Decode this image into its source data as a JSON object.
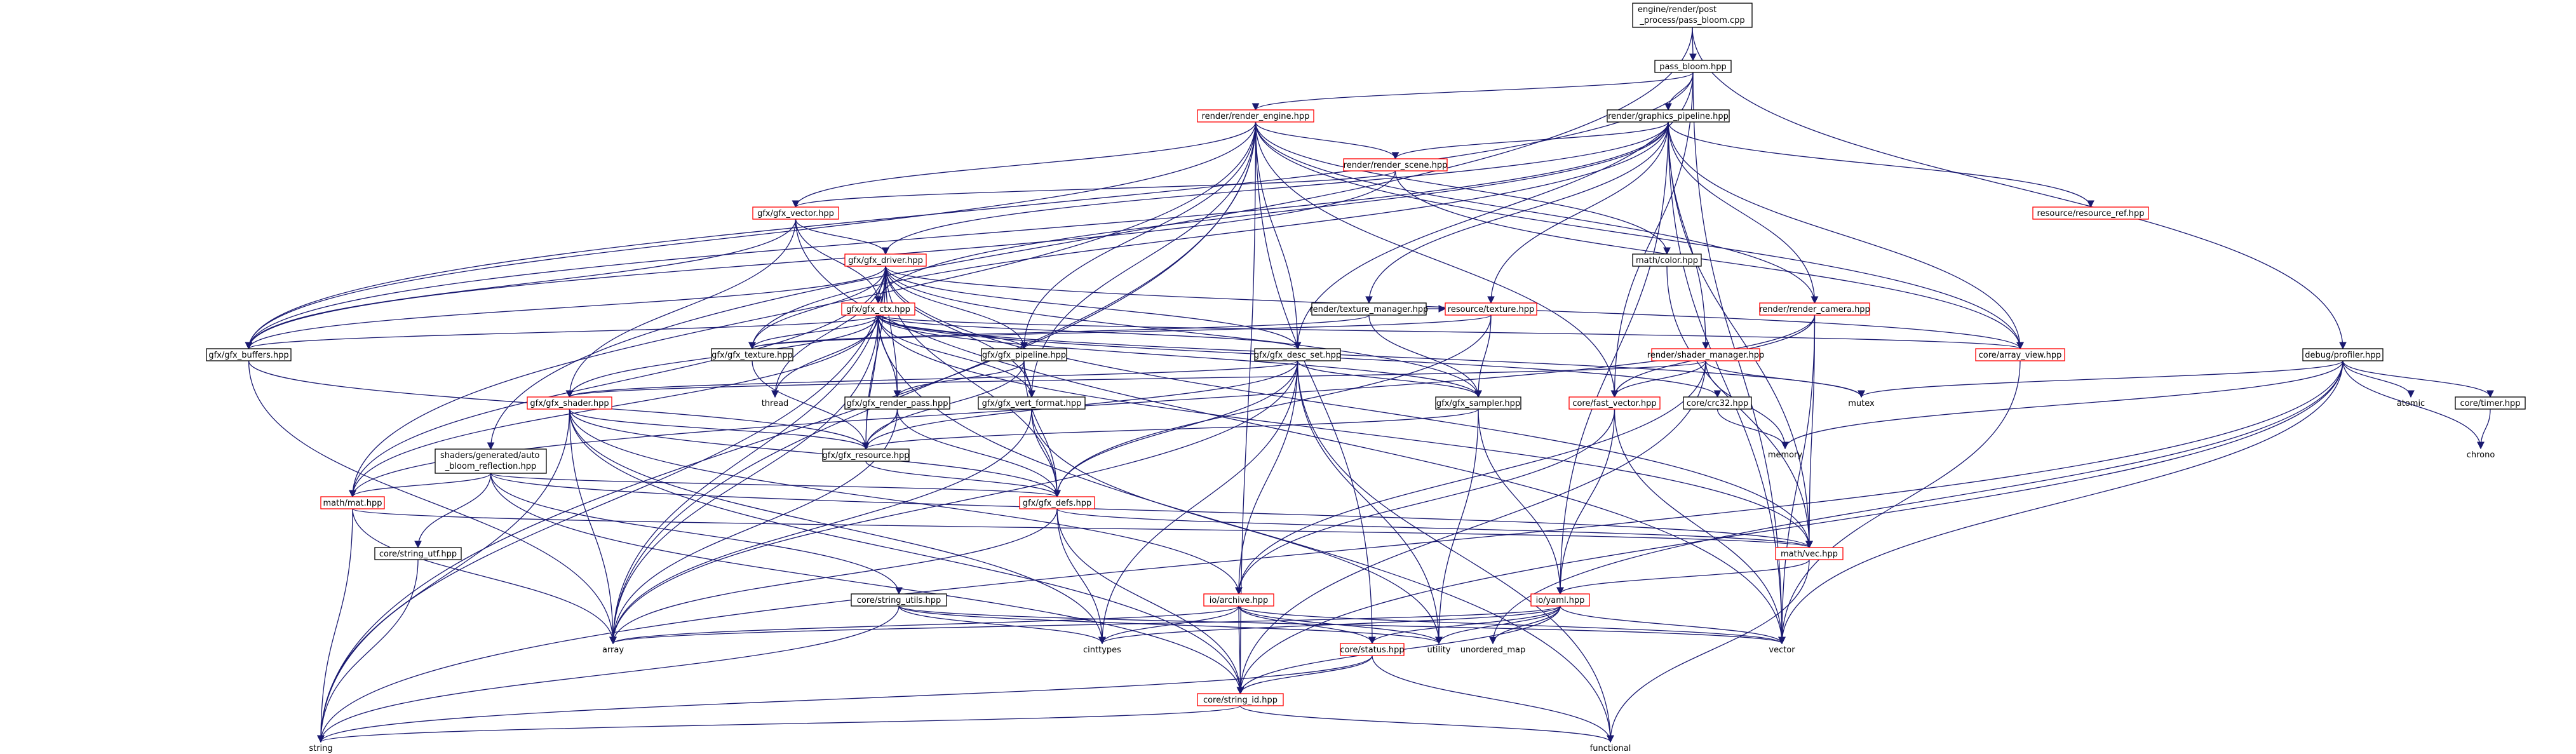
{
  "colors": {
    "edge": "#191970",
    "root_fill": "#bfbfbf",
    "node_border": "#000000",
    "incomplete_border": "#ff0000",
    "background": "#ffffff"
  },
  "nodes": {
    "root": {
      "label": "engine/render/post\n_process/pass_bloom.cpp",
      "style": "root"
    },
    "pass_bloom_hpp": {
      "label": "pass_bloom.hpp",
      "style": "normal"
    },
    "render_engine": {
      "label": "render/render_engine.hpp",
      "style": "red"
    },
    "graphics_pipeline": {
      "label": "render/graphics_pipeline.hpp",
      "style": "normal"
    },
    "debug_profiler": {
      "label": "debug/profiler.hpp",
      "style": "normal"
    },
    "render_scene": {
      "label": "render/render_scene.hpp",
      "style": "red"
    },
    "resource_ref": {
      "label": "resource/resource_ref.hpp",
      "style": "red"
    },
    "gfx_vector": {
      "label": "gfx/gfx_vector.hpp",
      "style": "red"
    },
    "math_color": {
      "label": "math/color.hpp",
      "style": "normal"
    },
    "gfx_driver": {
      "label": "gfx/gfx_driver.hpp",
      "style": "red"
    },
    "texture_manager": {
      "label": "render/texture_manager.hpp",
      "style": "normal"
    },
    "resource_texture": {
      "label": "resource/texture.hpp",
      "style": "red"
    },
    "render_camera": {
      "label": "render/render_camera.hpp",
      "style": "red"
    },
    "gfx_ctx": {
      "label": "gfx/gfx_ctx.hpp",
      "style": "red"
    },
    "core_array_view": {
      "label": "core/array_view.hpp",
      "style": "red"
    },
    "gfx_buffers": {
      "label": "gfx/gfx_buffers.hpp",
      "style": "normal"
    },
    "gfx_texture": {
      "label": "gfx/gfx_texture.hpp",
      "style": "normal"
    },
    "gfx_pipeline": {
      "label": "gfx/gfx_pipeline.hpp",
      "style": "normal"
    },
    "gfx_desc_set": {
      "label": "gfx/gfx_desc_set.hpp",
      "style": "normal"
    },
    "shader_manager": {
      "label": "render/shader_manager.hpp",
      "style": "red"
    },
    "gfx_shader": {
      "label": "gfx/gfx_shader.hpp",
      "style": "red"
    },
    "gfx_render_pass": {
      "label": "gfx/gfx_render_pass.hpp",
      "style": "normal"
    },
    "gfx_vert_format": {
      "label": "gfx/gfx_vert_format.hpp",
      "style": "normal"
    },
    "gfx_sampler": {
      "label": "gfx/gfx_sampler.hpp",
      "style": "normal"
    },
    "core_fast_vector": {
      "label": "core/fast_vector.hpp",
      "style": "red"
    },
    "core_crc32": {
      "label": "core/crc32.hpp",
      "style": "normal"
    },
    "core_timer": {
      "label": "core/timer.hpp",
      "style": "normal"
    },
    "gfx_resource": {
      "label": "gfx/gfx_resource.hpp",
      "style": "normal"
    },
    "shaders_auto": {
      "label": "shaders/generated/auto\n_bloom_reflection.hpp",
      "style": "normal"
    },
    "gfx_defs": {
      "label": "gfx/gfx_defs.hpp",
      "style": "red"
    },
    "math_mat": {
      "label": "math/mat.hpp",
      "style": "red"
    },
    "math_vec": {
      "label": "math/vec.hpp",
      "style": "red"
    },
    "core_string_utf": {
      "label": "core/string_utf.hpp",
      "style": "normal"
    },
    "core_string_utils": {
      "label": "core/string_utils.hpp",
      "style": "normal"
    },
    "io_archive": {
      "label": "io/archive.hpp",
      "style": "red"
    },
    "io_yaml": {
      "label": "io/yaml.hpp",
      "style": "red"
    },
    "core_status": {
      "label": "core/status.hpp",
      "style": "red"
    },
    "core_string_id": {
      "label": "core/string_id.hpp",
      "style": "red"
    },
    "thread": {
      "label": "thread",
      "style": "leaf"
    },
    "mutex": {
      "label": "mutex",
      "style": "leaf"
    },
    "atomic": {
      "label": "atomic",
      "style": "leaf"
    },
    "chrono": {
      "label": "chrono",
      "style": "leaf"
    },
    "memory": {
      "label": "memory",
      "style": "leaf"
    },
    "array": {
      "label": "array",
      "style": "leaf"
    },
    "cinttypes": {
      "label": "cinttypes",
      "style": "leaf"
    },
    "utility": {
      "label": "utility",
      "style": "leaf"
    },
    "unordered_map": {
      "label": "unordered_map",
      "style": "leaf"
    },
    "vector": {
      "label": "vector",
      "style": "leaf"
    },
    "string": {
      "label": "string",
      "style": "leaf"
    },
    "functional": {
      "label": "functional",
      "style": "leaf"
    }
  },
  "edges": [
    [
      "root",
      "pass_bloom_hpp"
    ],
    [
      "root",
      "debug_profiler"
    ],
    [
      "root",
      "shaders_auto"
    ],
    [
      "pass_bloom_hpp",
      "render_engine"
    ],
    [
      "pass_bloom_hpp",
      "graphics_pipeline"
    ],
    [
      "pass_bloom_hpp",
      "gfx_buffers"
    ],
    [
      "pass_bloom_hpp",
      "gfx_desc_set"
    ],
    [
      "pass_bloom_hpp",
      "core_fast_vector"
    ],
    [
      "pass_bloom_hpp",
      "vector"
    ],
    [
      "render_engine",
      "render_scene"
    ],
    [
      "render_engine",
      "gfx_vector"
    ],
    [
      "render_engine",
      "math_color"
    ],
    [
      "render_engine",
      "render_camera"
    ],
    [
      "render_engine",
      "core_array_view"
    ],
    [
      "render_engine",
      "gfx_pipeline"
    ],
    [
      "render_engine",
      "gfx_desc_set"
    ],
    [
      "render_engine",
      "gfx_vert_format"
    ],
    [
      "render_engine",
      "gfx_buffers"
    ],
    [
      "render_engine",
      "core_status"
    ],
    [
      "render_engine",
      "core_string_id"
    ],
    [
      "render_engine",
      "array"
    ],
    [
      "render_engine",
      "string"
    ],
    [
      "render_engine",
      "math_mat"
    ],
    [
      "render_engine",
      "core_fast_vector"
    ],
    [
      "graphics_pipeline",
      "render_scene"
    ],
    [
      "graphics_pipeline",
      "gfx_driver"
    ],
    [
      "graphics_pipeline",
      "gfx_ctx"
    ],
    [
      "graphics_pipeline",
      "resource_ref"
    ],
    [
      "graphics_pipeline",
      "texture_manager"
    ],
    [
      "graphics_pipeline",
      "resource_texture"
    ],
    [
      "graphics_pipeline",
      "render_camera"
    ],
    [
      "graphics_pipeline",
      "shader_manager"
    ],
    [
      "graphics_pipeline",
      "core_array_view"
    ],
    [
      "graphics_pipeline",
      "gfx_buffers"
    ],
    [
      "graphics_pipeline",
      "gfx_texture"
    ],
    [
      "graphics_pipeline",
      "math_vec"
    ],
    [
      "graphics_pipeline",
      "vector"
    ],
    [
      "graphics_pipeline",
      "io_yaml"
    ],
    [
      "render_scene",
      "gfx_vector"
    ],
    [
      "render_scene",
      "gfx_buffers"
    ],
    [
      "render_scene",
      "core_array_view"
    ],
    [
      "gfx_vector",
      "gfx_driver"
    ],
    [
      "gfx_vector",
      "gfx_buffers"
    ],
    [
      "gfx_vector",
      "gfx_shader"
    ],
    [
      "gfx_vector",
      "gfx_ctx"
    ],
    [
      "gfx_vector",
      "vector"
    ],
    [
      "math_color",
      "math_vec"
    ],
    [
      "gfx_driver",
      "gfx_ctx"
    ],
    [
      "gfx_driver",
      "gfx_buffers"
    ],
    [
      "gfx_driver",
      "gfx_texture"
    ],
    [
      "gfx_driver",
      "gfx_pipeline"
    ],
    [
      "gfx_driver",
      "gfx_desc_set"
    ],
    [
      "gfx_driver",
      "gfx_render_pass"
    ],
    [
      "gfx_driver",
      "gfx_vert_format"
    ],
    [
      "gfx_driver",
      "gfx_sampler"
    ],
    [
      "gfx_driver",
      "gfx_resource"
    ],
    [
      "gfx_driver",
      "gfx_defs"
    ],
    [
      "gfx_driver",
      "math_mat"
    ],
    [
      "gfx_driver",
      "math_vec"
    ],
    [
      "gfx_driver",
      "array"
    ],
    [
      "gfx_driver",
      "string"
    ],
    [
      "gfx_driver",
      "thread"
    ],
    [
      "gfx_driver",
      "core_array_view"
    ],
    [
      "texture_manager",
      "gfx_texture"
    ],
    [
      "texture_manager",
      "gfx_sampler"
    ],
    [
      "texture_manager",
      "resource_texture"
    ],
    [
      "resource_texture",
      "gfx_texture"
    ],
    [
      "resource_texture",
      "gfx_sampler"
    ],
    [
      "resource_texture",
      "gfx_defs"
    ],
    [
      "render_camera",
      "math_mat"
    ],
    [
      "render_camera",
      "math_vec"
    ],
    [
      "render_camera",
      "core_fast_vector"
    ],
    [
      "render_camera",
      "vector"
    ],
    [
      "gfx_ctx",
      "gfx_buffers"
    ],
    [
      "gfx_ctx",
      "gfx_texture"
    ],
    [
      "gfx_ctx",
      "gfx_pipeline"
    ],
    [
      "gfx_ctx",
      "gfx_desc_set"
    ],
    [
      "gfx_ctx",
      "gfx_shader"
    ],
    [
      "gfx_ctx",
      "gfx_render_pass"
    ],
    [
      "gfx_ctx",
      "gfx_vert_format"
    ],
    [
      "gfx_ctx",
      "gfx_sampler"
    ],
    [
      "gfx_ctx",
      "gfx_resource"
    ],
    [
      "gfx_ctx",
      "core_crc32"
    ],
    [
      "gfx_ctx",
      "math_mat"
    ],
    [
      "gfx_ctx",
      "math_vec"
    ],
    [
      "gfx_ctx",
      "array"
    ],
    [
      "gfx_ctx",
      "thread"
    ],
    [
      "gfx_ctx",
      "mutex"
    ],
    [
      "gfx_ctx",
      "functional"
    ],
    [
      "gfx_ctx",
      "core_array_view"
    ],
    [
      "core_array_view",
      "vector"
    ],
    [
      "gfx_buffers",
      "gfx_resource"
    ],
    [
      "gfx_buffers",
      "array"
    ],
    [
      "gfx_texture",
      "gfx_resource"
    ],
    [
      "gfx_pipeline",
      "gfx_resource"
    ],
    [
      "gfx_pipeline",
      "gfx_defs"
    ],
    [
      "gfx_pipeline",
      "gfx_vert_format"
    ],
    [
      "gfx_pipeline",
      "gfx_render_pass"
    ],
    [
      "gfx_desc_set",
      "gfx_resource"
    ],
    [
      "gfx_desc_set",
      "gfx_sampler"
    ],
    [
      "gfx_desc_set",
      "gfx_defs"
    ],
    [
      "gfx_desc_set",
      "cinttypes"
    ],
    [
      "gfx_desc_set",
      "utility"
    ],
    [
      "gfx_desc_set",
      "array"
    ],
    [
      "gfx_desc_set",
      "functional"
    ],
    [
      "gfx_desc_set",
      "io_archive"
    ],
    [
      "gfx_desc_set",
      "gfx_shader"
    ],
    [
      "shader_manager",
      "gfx_shader"
    ],
    [
      "shader_manager",
      "core_fast_vector"
    ],
    [
      "shader_manager",
      "io_archive"
    ],
    [
      "shader_manager",
      "mutex"
    ],
    [
      "shader_manager",
      "memory"
    ],
    [
      "shader_manager",
      "core_string_id"
    ],
    [
      "gfx_shader",
      "gfx_resource"
    ],
    [
      "gfx_shader",
      "gfx_defs"
    ],
    [
      "gfx_shader",
      "array"
    ],
    [
      "gfx_shader",
      "string"
    ],
    [
      "gfx_shader",
      "core_string_id"
    ],
    [
      "gfx_shader",
      "io_archive"
    ],
    [
      "gfx_shader",
      "cinttypes"
    ],
    [
      "gfx_render_pass",
      "gfx_resource"
    ],
    [
      "gfx_render_pass",
      "gfx_defs"
    ],
    [
      "gfx_render_pass",
      "array"
    ],
    [
      "gfx_vert_format",
      "gfx_defs"
    ],
    [
      "gfx_vert_format",
      "array"
    ],
    [
      "gfx_vert_format",
      "utility"
    ],
    [
      "gfx_sampler",
      "gfx_resource"
    ],
    [
      "gfx_sampler",
      "io_yaml"
    ],
    [
      "gfx_sampler",
      "utility"
    ],
    [
      "core_fast_vector",
      "io_archive"
    ],
    [
      "core_fast_vector",
      "io_yaml"
    ],
    [
      "core_fast_vector",
      "vector"
    ],
    [
      "core_crc32",
      "memory"
    ],
    [
      "core_timer",
      "chrono"
    ],
    [
      "debug_profiler",
      "core_timer"
    ],
    [
      "debug_profiler",
      "mutex"
    ],
    [
      "debug_profiler",
      "atomic"
    ],
    [
      "debug_profiler",
      "chrono"
    ],
    [
      "debug_profiler",
      "memory"
    ],
    [
      "debug_profiler",
      "vector"
    ],
    [
      "debug_profiler",
      "unordered_map"
    ],
    [
      "debug_profiler",
      "core_string_id"
    ],
    [
      "debug_profiler",
      "string"
    ],
    [
      "gfx_resource",
      "gfx_defs"
    ],
    [
      "shaders_auto",
      "math_mat"
    ],
    [
      "shaders_auto",
      "math_vec"
    ],
    [
      "shaders_auto",
      "gfx_defs"
    ],
    [
      "shaders_auto",
      "core_string_utf"
    ],
    [
      "shaders_auto",
      "core_string_utils"
    ],
    [
      "shaders_auto",
      "core_string_id"
    ],
    [
      "gfx_defs",
      "math_vec"
    ],
    [
      "gfx_defs",
      "cinttypes"
    ],
    [
      "gfx_defs",
      "core_string_id"
    ],
    [
      "gfx_defs",
      "array"
    ],
    [
      "math_mat",
      "math_vec"
    ],
    [
      "math_mat",
      "array"
    ],
    [
      "math_mat",
      "string"
    ],
    [
      "math_vec",
      "io_yaml"
    ],
    [
      "math_vec",
      "functional"
    ],
    [
      "core_string_utf",
      "string"
    ],
    [
      "core_string_utils",
      "cinttypes"
    ],
    [
      "core_string_utils",
      "string"
    ],
    [
      "core_string_utils",
      "vector"
    ],
    [
      "core_string_utils",
      "utility"
    ],
    [
      "io_archive",
      "core_status"
    ],
    [
      "io_archive",
      "core_string_id"
    ],
    [
      "io_archive",
      "cinttypes"
    ],
    [
      "io_archive",
      "array"
    ],
    [
      "io_archive",
      "utility"
    ],
    [
      "io_archive",
      "vector"
    ],
    [
      "io_yaml",
      "core_status"
    ],
    [
      "io_yaml",
      "core_string_id"
    ],
    [
      "io_yaml",
      "array"
    ],
    [
      "io_yaml",
      "utility"
    ],
    [
      "io_yaml",
      "unordered_map"
    ],
    [
      "io_yaml",
      "vector"
    ],
    [
      "io_yaml",
      "cinttypes"
    ],
    [
      "core_status",
      "core_string_id"
    ],
    [
      "core_status",
      "string"
    ],
    [
      "core_status",
      "functional"
    ],
    [
      "core_string_id",
      "string"
    ],
    [
      "core_string_id",
      "functional"
    ]
  ]
}
